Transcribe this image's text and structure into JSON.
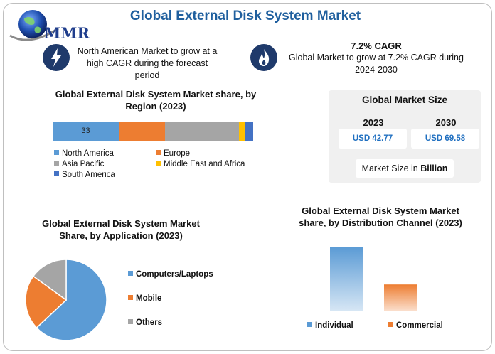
{
  "header": {
    "title": "Global External Disk System Market",
    "logo_text": "MMR",
    "logo_icon": "globe-icon"
  },
  "highlights": [
    {
      "icon": "lightning-icon",
      "text": "North American Market to grow at a high CAGR during the forecast period"
    },
    {
      "icon": "flame-icon",
      "cagr": "7.2% CAGR",
      "text": "Global Market to grow at 7.2% CAGR during 2024-2030"
    }
  ],
  "market_size": {
    "title": "Global Market Size",
    "year_1": "2023",
    "year_2": "2030",
    "value_1": "USD 42.77",
    "value_2": "USD 69.58",
    "unit_prefix": "Market Size in ",
    "unit_bold": "Billion"
  },
  "colors": {
    "north_america": "#5b9bd5",
    "europe": "#ed7d31",
    "asia_pacific": "#a5a5a5",
    "middle_east_africa": "#ffc000",
    "south_america": "#4472c4",
    "title_blue": "#1f5f9e"
  },
  "chart_data": [
    {
      "type": "bar",
      "stacked": true,
      "orientation": "horizontal",
      "title": "Global External Disk System Market share, by Region (2023)",
      "series": [
        {
          "name": "North America",
          "values": [
            33
          ]
        },
        {
          "name": "Europe",
          "values": [
            23
          ]
        },
        {
          "name": "Asia Pacific",
          "values": [
            37
          ]
        },
        {
          "name": "Middle East and Africa",
          "values": [
            3
          ]
        },
        {
          "name": "South America",
          "values": [
            4
          ]
        }
      ],
      "data_labels": [
        "33"
      ],
      "legend": "bottom"
    },
    {
      "type": "pie",
      "title": "Global External Disk System Market Share, by Application (2023)",
      "categories": [
        "Computers/Laptops",
        "Mobile",
        "Others"
      ],
      "values": [
        63,
        22,
        15
      ],
      "legend": "right"
    },
    {
      "type": "bar",
      "title": "Global External Disk System Market share, by Distribution Channel (2023)",
      "categories": [
        "Individual",
        "Commercial"
      ],
      "values": [
        68,
        28
      ],
      "ylim": [
        0,
        70
      ],
      "legend": "bottom"
    }
  ]
}
